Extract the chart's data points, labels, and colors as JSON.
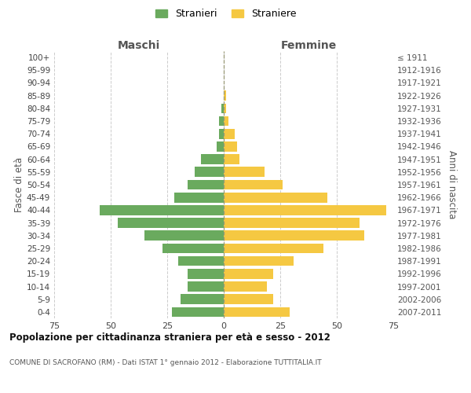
{
  "age_groups": [
    "100+",
    "95-99",
    "90-94",
    "85-89",
    "80-84",
    "75-79",
    "70-74",
    "65-69",
    "60-64",
    "55-59",
    "50-54",
    "45-49",
    "40-44",
    "35-39",
    "30-34",
    "25-29",
    "20-24",
    "15-19",
    "10-14",
    "5-9",
    "0-4"
  ],
  "birth_years": [
    "≤ 1911",
    "1912-1916",
    "1917-1921",
    "1922-1926",
    "1927-1931",
    "1932-1936",
    "1937-1941",
    "1942-1946",
    "1947-1951",
    "1952-1956",
    "1957-1961",
    "1962-1966",
    "1967-1971",
    "1972-1976",
    "1977-1981",
    "1982-1986",
    "1987-1991",
    "1992-1996",
    "1997-2001",
    "2002-2006",
    "2007-2011"
  ],
  "males": [
    0,
    0,
    0,
    0,
    1,
    2,
    2,
    3,
    10,
    13,
    16,
    22,
    55,
    47,
    35,
    27,
    20,
    16,
    16,
    19,
    23
  ],
  "females": [
    0,
    0,
    0,
    1,
    1,
    2,
    5,
    6,
    7,
    18,
    26,
    46,
    72,
    60,
    62,
    44,
    31,
    22,
    19,
    22,
    29
  ],
  "male_color": "#6aaa5e",
  "female_color": "#f5c842",
  "title": "Popolazione per cittadinanza straniera per età e sesso - 2012",
  "subtitle": "COMUNE DI SACROFANO (RM) - Dati ISTAT 1° gennaio 2012 - Elaborazione TUTTITALIA.IT",
  "xlabel_left": "Maschi",
  "xlabel_right": "Femmine",
  "ylabel_left": "Fasce di età",
  "ylabel_right": "Anni di nascita",
  "legend_male": "Stranieri",
  "legend_female": "Straniere",
  "xlim": 75,
  "background_color": "#ffffff",
  "grid_color": "#cccccc"
}
